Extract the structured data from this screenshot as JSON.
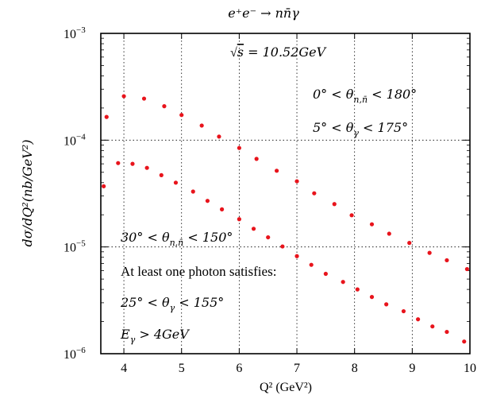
{
  "chart_data": {
    "type": "scatter",
    "title": "e⁺e⁻ → nn̄γ",
    "xlabel": "Q² (GeV²)",
    "ylabel": "dσ/dQ²(nb/GeV²)",
    "x_scale": "linear",
    "y_scale": "log",
    "xlim": [
      3.6,
      10
    ],
    "ylim": [
      1e-06,
      0.001
    ],
    "x_ticks": [
      "4",
      "5",
      "6",
      "7",
      "8",
      "9",
      "10"
    ],
    "y_ticks": [
      {
        "value": 0.001,
        "base": "10",
        "exp": "−3"
      },
      {
        "value": 0.0001,
        "base": "10",
        "exp": "−4"
      },
      {
        "value": 1e-05,
        "base": "10",
        "exp": "−5"
      },
      {
        "value": 1e-06,
        "base": "10",
        "exp": "−6"
      }
    ],
    "grid": true,
    "marker_color": "#e8141c",
    "series": [
      {
        "x": [
          3.7,
          4.0,
          4.35,
          4.7,
          5.0,
          5.35,
          5.65,
          6.0,
          6.3,
          6.65,
          7.0,
          7.3,
          7.65,
          7.95,
          8.3,
          8.6,
          8.95,
          9.3,
          9.6,
          9.95
        ],
        "y": [
          0.000165,
          0.000258,
          0.000245,
          0.000208,
          0.000172,
          0.000137,
          0.000108,
          8.45e-05,
          6.68e-05,
          5.17e-05,
          4.12e-05,
          3.18e-05,
          2.52e-05,
          1.98e-05,
          1.63e-05,
          1.33e-05,
          1.09e-05,
          8.8e-06,
          7.5e-06,
          6.2e-06
        ]
      },
      {
        "x": [
          3.65,
          3.9,
          4.15,
          4.4,
          4.65,
          4.9,
          5.2,
          5.45,
          5.7,
          6.0,
          6.25,
          6.5,
          6.75,
          7.0,
          7.25,
          7.5,
          7.8,
          8.05,
          8.3,
          8.55,
          8.85,
          9.1,
          9.35,
          9.6,
          9.9
        ],
        "y": [
          3.7e-05,
          6.1e-05,
          6e-05,
          5.5e-05,
          4.7e-05,
          4e-05,
          3.3e-05,
          2.7e-05,
          2.25e-05,
          1.82e-05,
          1.48e-05,
          1.23e-05,
          1.01e-05,
          8.2e-06,
          6.8e-06,
          5.6e-06,
          4.7e-06,
          4e-06,
          3.4e-06,
          2.9e-06,
          2.5e-06,
          2.1e-06,
          1.8e-06,
          1.6e-06,
          1.3e-06
        ]
      }
    ],
    "annotations": {
      "energy": {
        "lhs": "√",
        "s": "s",
        "rhs": " = 10.52GeV"
      },
      "theta_n_full": {
        "pre": "0° < θ",
        "sub": "n,n̄",
        "post": " < 180°"
      },
      "theta_g_wide": {
        "pre": "5° < θ",
        "sub": "γ",
        "post": " < 175°"
      },
      "theta_n_cut": {
        "pre": "30° < θ",
        "sub": "n,n̄",
        "post": " < 150°"
      },
      "photon_text": "At least one photon satisfies:",
      "theta_g_cut": {
        "pre": "25° < θ",
        "sub": "γ",
        "post": " < 155°"
      },
      "egamma": {
        "pre": "E",
        "sub": "γ",
        "post": " > 4GeV"
      }
    }
  }
}
